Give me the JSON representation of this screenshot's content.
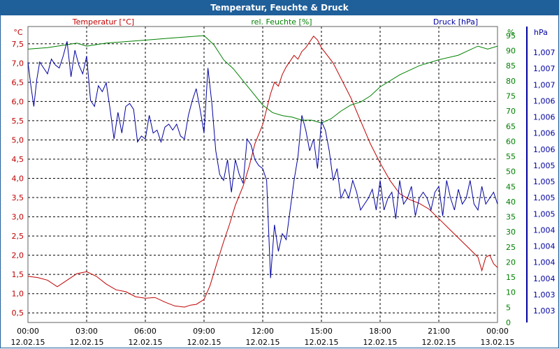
{
  "window": {
    "title": "Temperatur, Feuchte & Druck"
  },
  "colors": {
    "temperature": "#c00000",
    "humidity": "#008000",
    "pressure": "#0000a0",
    "grid": "#000000",
    "header": "#1f5f9a"
  },
  "chart_data": {
    "type": "line",
    "title": "Temperatur, Feuchte & Druck",
    "x_unit": "time",
    "x_ticks": [
      {
        "time": "00:00",
        "date": "12.02.15"
      },
      {
        "time": "03:00",
        "date": "12.02.15"
      },
      {
        "time": "06:00",
        "date": "12.02.15"
      },
      {
        "time": "09:00",
        "date": "12.02.15"
      },
      {
        "time": "12:00",
        "date": "12.02.15"
      },
      {
        "time": "15:00",
        "date": "12.02.15"
      },
      {
        "time": "18:00",
        "date": "12.02.15"
      },
      {
        "time": "21:00",
        "date": "12.02.15"
      },
      {
        "time": "00:00",
        "date": "13.02.15"
      }
    ],
    "xlim_hours": [
      0,
      24
    ],
    "axes": {
      "left": {
        "unit": "°C",
        "label": "Temperatur [°C]",
        "ylim": [
          0.25,
          7.95
        ],
        "ticks": [
          "0,5",
          "1,0",
          "1,5",
          "2,0",
          "2,5",
          "3,0",
          "3,5",
          "4,0",
          "4,5",
          "5,0",
          "5,5",
          "6,0",
          "6,5",
          "7,0",
          "7,5"
        ]
      },
      "right1": {
        "unit": "%",
        "label": "rel. Feuchte [%]",
        "ylim": [
          0,
          98
        ],
        "ticks": [
          "0",
          "5",
          "10",
          "15",
          "20",
          "25",
          "30",
          "35",
          "40",
          "45",
          "50",
          "55",
          "60",
          "65",
          "70",
          "75",
          "80",
          "85",
          "90",
          "95"
        ]
      },
      "right2": {
        "unit": "hPa",
        "label": "Druck [hPa]",
        "ticks": [
          "1,003",
          "1,003",
          "1,004",
          "1,004",
          "1,004",
          "1,004",
          "1,005",
          "1,005",
          "1,005",
          "1,005",
          "1,006",
          "1,006",
          "1,006",
          "1,006",
          "1,007",
          "1,007",
          "1,007"
        ]
      }
    },
    "series": [
      {
        "name": "Temperatur [°C]",
        "axis": "left",
        "x": [
          0,
          0.5,
          1,
          1.5,
          2,
          2.5,
          3,
          3.5,
          4,
          4.5,
          5,
          5.5,
          6,
          6.5,
          7,
          7.5,
          8,
          8.3,
          8.6,
          9,
          9.3,
          9.6,
          10,
          10.3,
          10.6,
          11,
          11.3,
          11.6,
          12,
          12.2,
          12.4,
          12.6,
          12.8,
          13,
          13.2,
          13.4,
          13.6,
          13.8,
          14,
          14.2,
          14.4,
          14.6,
          14.8,
          15,
          15.3,
          15.6,
          16,
          16.5,
          17,
          17.5,
          18,
          18.5,
          19,
          19.5,
          20,
          20.5,
          21,
          21.5,
          22,
          22.5,
          23,
          23.2,
          23.4,
          23.6,
          23.8,
          24
        ],
        "y": [
          1.45,
          1.42,
          1.35,
          1.18,
          1.35,
          1.52,
          1.57,
          1.45,
          1.25,
          1.1,
          1.05,
          0.92,
          0.88,
          0.9,
          0.78,
          0.68,
          0.65,
          0.7,
          0.72,
          0.85,
          1.2,
          1.7,
          2.35,
          2.8,
          3.3,
          3.8,
          4.3,
          4.9,
          5.4,
          5.8,
          6.2,
          6.5,
          6.4,
          6.7,
          6.9,
          7.05,
          7.2,
          7.1,
          7.3,
          7.4,
          7.55,
          7.7,
          7.6,
          7.4,
          7.2,
          7.0,
          6.6,
          6.1,
          5.5,
          4.9,
          4.4,
          3.95,
          3.6,
          3.45,
          3.35,
          3.2,
          2.95,
          2.7,
          2.45,
          2.2,
          1.95,
          1.6,
          1.95,
          2.0,
          1.78,
          1.68
        ]
      },
      {
        "name": "rel. Feuchte [%]",
        "axis": "right1",
        "x": [
          0,
          1,
          2,
          2.5,
          3,
          4,
          5,
          6,
          7,
          8,
          9,
          9.5,
          10,
          10.5,
          11,
          11.5,
          12,
          12.5,
          13,
          13.5,
          14,
          14.5,
          15,
          15.5,
          16,
          16.5,
          17,
          17.5,
          18,
          19,
          20,
          21,
          22,
          22.5,
          23,
          23.5,
          24
        ],
        "y": [
          90.5,
          91,
          92,
          92.5,
          91.5,
          92.5,
          93,
          93.5,
          94,
          94.5,
          95,
          92,
          87,
          84,
          80,
          76,
          72,
          69.5,
          68.5,
          68,
          67,
          67,
          66,
          67.5,
          70,
          72,
          73,
          75,
          78,
          82,
          85,
          87,
          88.5,
          90,
          91.5,
          90.5,
          91.5
        ]
      },
      {
        "name": "Druck [hPa]",
        "axis": "right2",
        "x": [
          0,
          0.15,
          0.3,
          0.45,
          0.6,
          0.8,
          1.0,
          1.2,
          1.4,
          1.6,
          1.8,
          2.0,
          2.2,
          2.4,
          2.6,
          2.8,
          3.0,
          3.2,
          3.4,
          3.6,
          3.8,
          4.0,
          4.2,
          4.4,
          4.6,
          4.8,
          5.0,
          5.2,
          5.4,
          5.6,
          5.8,
          6.0,
          6.2,
          6.4,
          6.6,
          6.8,
          7.0,
          7.2,
          7.4,
          7.6,
          7.8,
          8.0,
          8.2,
          8.4,
          8.6,
          8.8,
          9.0,
          9.2,
          9.4,
          9.6,
          9.8,
          10.0,
          10.2,
          10.4,
          10.6,
          10.8,
          11.0,
          11.2,
          11.4,
          11.6,
          11.8,
          12.0,
          12.2,
          12.4,
          12.6,
          12.8,
          13.0,
          13.2,
          13.4,
          13.6,
          13.8,
          14.0,
          14.2,
          14.4,
          14.6,
          14.8,
          15.0,
          15.2,
          15.4,
          15.6,
          15.8,
          16.0,
          16.2,
          16.4,
          16.6,
          16.8,
          17.0,
          17.2,
          17.4,
          17.6,
          17.8,
          18.0,
          18.2,
          18.4,
          18.6,
          18.8,
          19.0,
          19.2,
          19.4,
          19.6,
          19.8,
          20.0,
          20.2,
          20.4,
          20.6,
          20.8,
          21.0,
          21.2,
          21.4,
          21.6,
          21.8,
          22.0,
          22.2,
          22.4,
          22.6,
          22.8,
          23.0,
          23.2,
          23.4,
          23.6,
          23.8,
          24.0
        ],
        "y": [
          88,
          80,
          73,
          82,
          88,
          86,
          84,
          89,
          87,
          86,
          90,
          95,
          83,
          92,
          87,
          84,
          90,
          75,
          73,
          80,
          78,
          81,
          72,
          62,
          71,
          64,
          73,
          74,
          72,
          61,
          63,
          62,
          70,
          64,
          65,
          61,
          66,
          67,
          65,
          67,
          63,
          62,
          70,
          75,
          79,
          72,
          64,
          86,
          74,
          58,
          50,
          48,
          55,
          44,
          55,
          50,
          47,
          62,
          60,
          55,
          53,
          52,
          48,
          15,
          33,
          24,
          30,
          28,
          38,
          48,
          56,
          70,
          65,
          58,
          62,
          52,
          68,
          65,
          58,
          48,
          52,
          42,
          45,
          42,
          48,
          44,
          38,
          40,
          42,
          45,
          38,
          48,
          38,
          42,
          44,
          35,
          48,
          40,
          42,
          46,
          36,
          42,
          44,
          42,
          38,
          44,
          46,
          36,
          48,
          42,
          38,
          45,
          40,
          42,
          48,
          40,
          38,
          46,
          40,
          42,
          44,
          40
        ]
      }
    ],
    "grid": true,
    "legend": "top"
  }
}
